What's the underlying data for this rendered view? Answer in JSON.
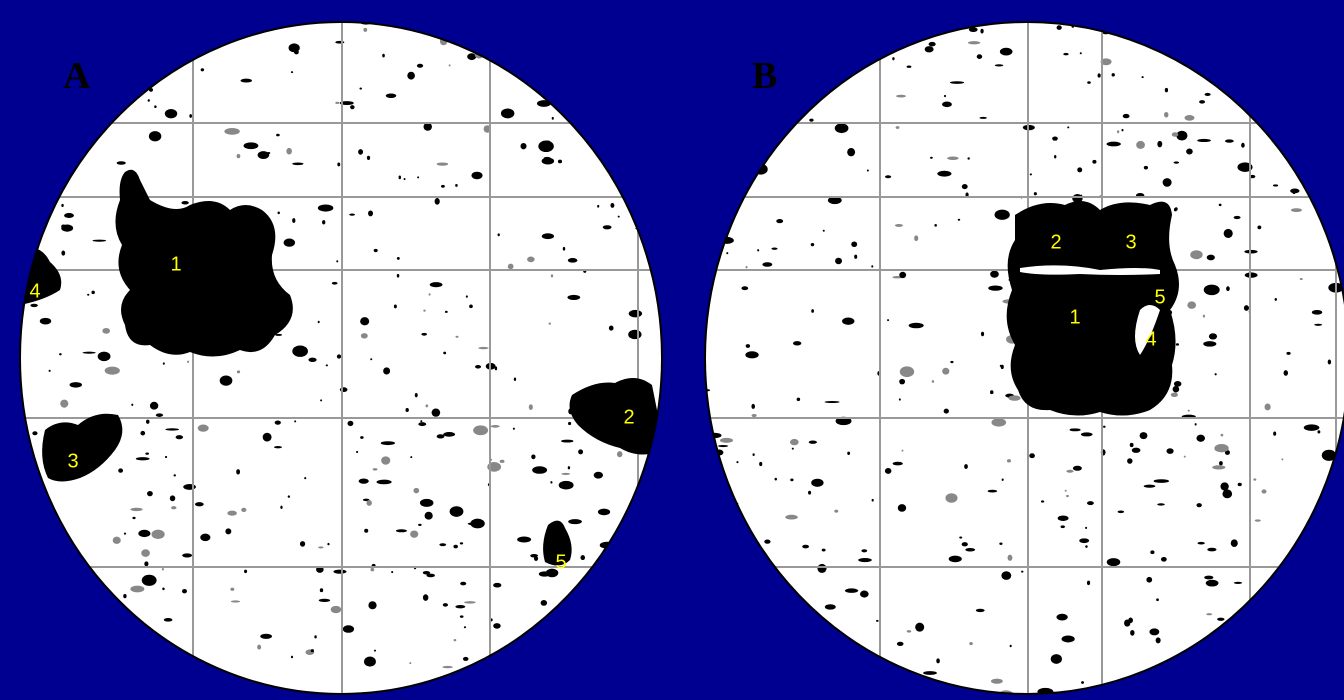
{
  "panels": [
    {
      "label": "A",
      "regions": [
        "1",
        "2",
        "3",
        "4",
        "5"
      ]
    },
    {
      "label": "B",
      "regions": [
        "1",
        "2",
        "3",
        "4",
        "5"
      ]
    }
  ]
}
